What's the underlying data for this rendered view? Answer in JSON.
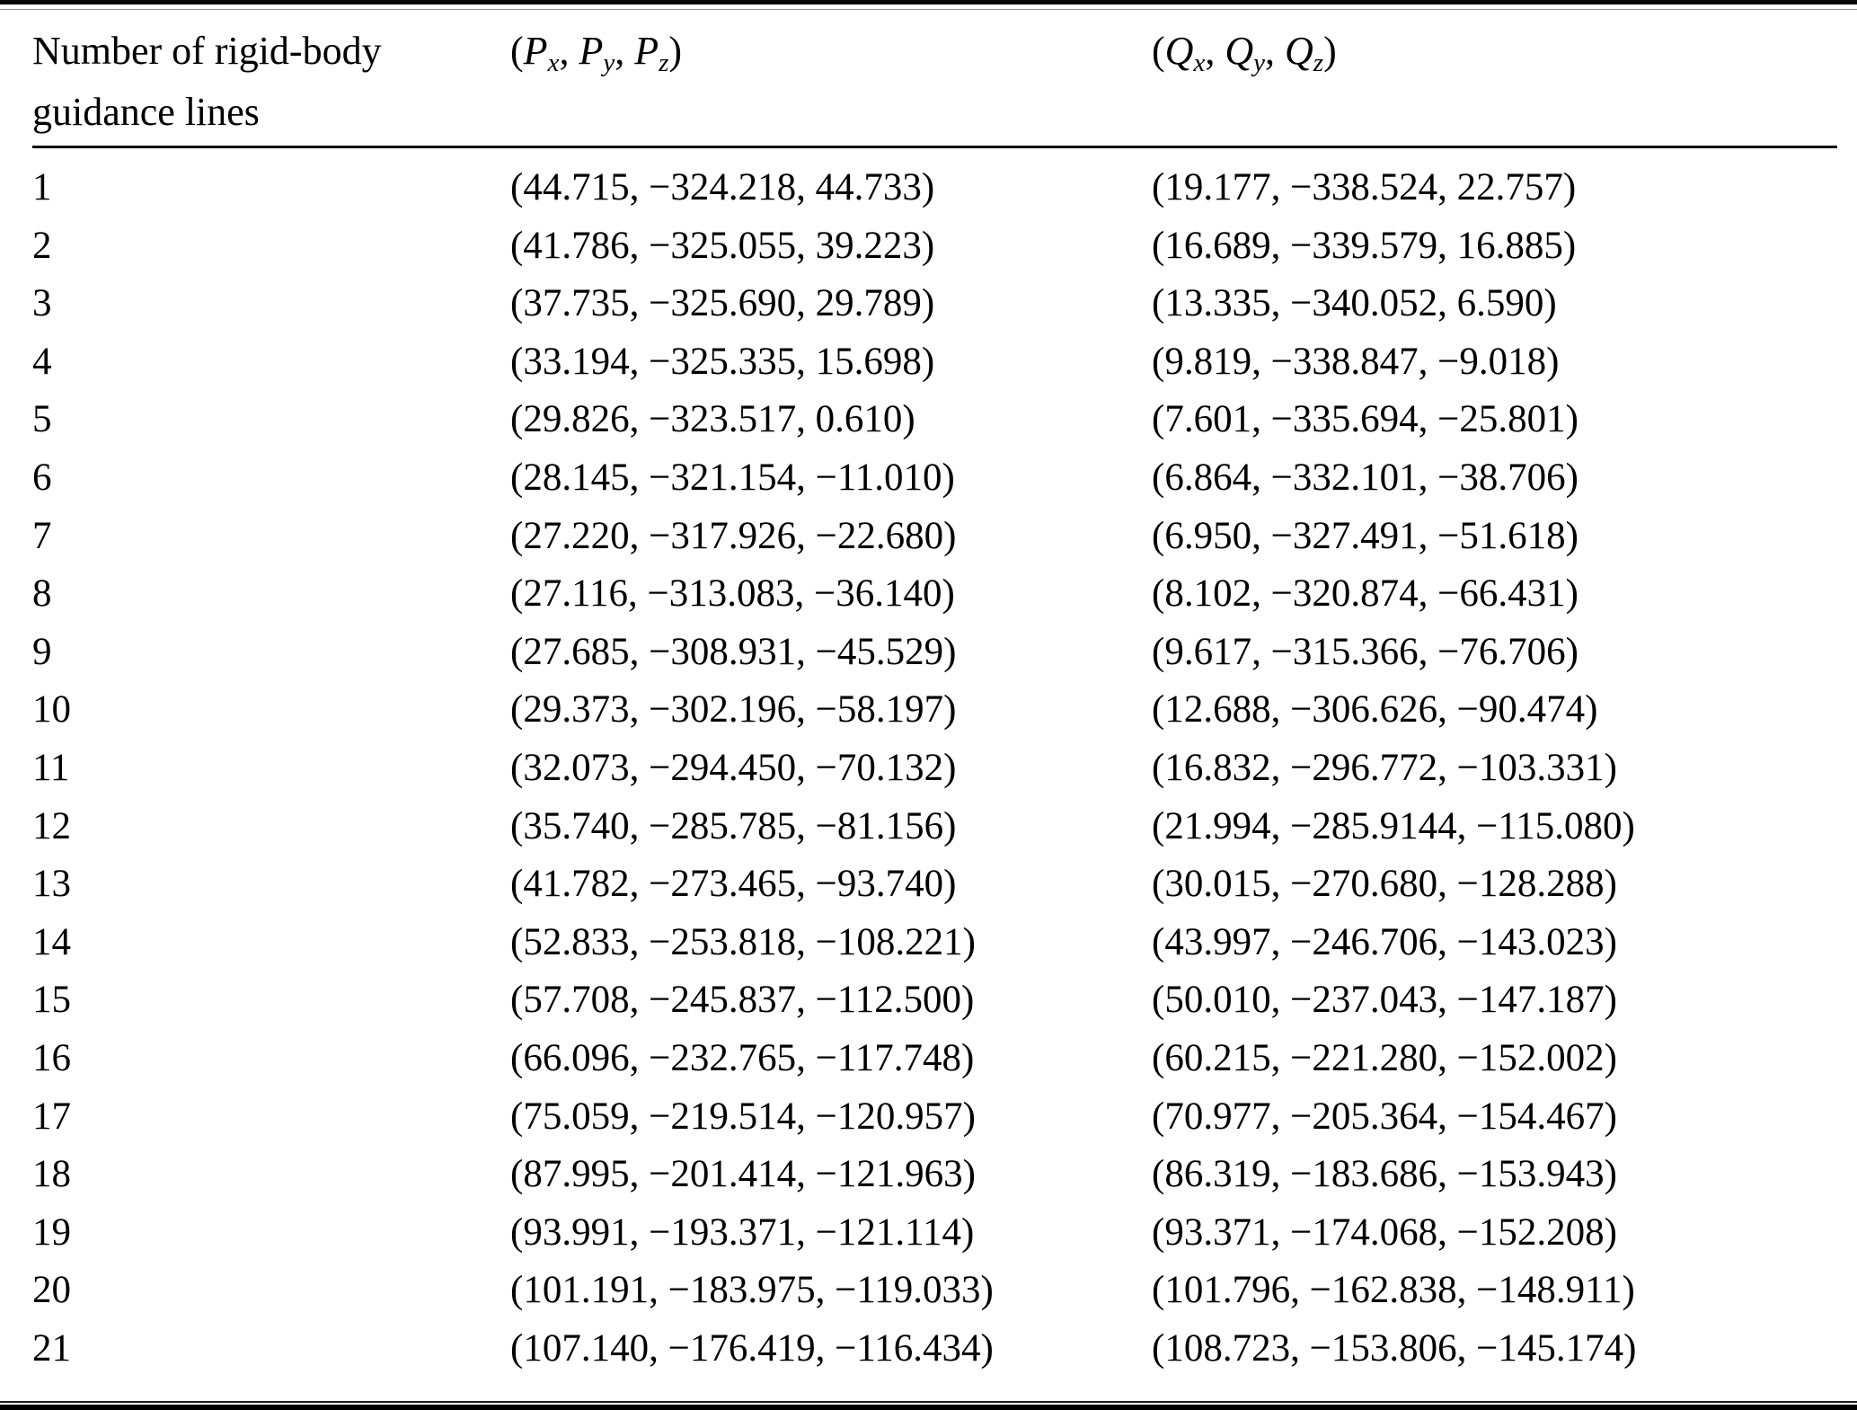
{
  "page": {
    "background": "#ffffff",
    "text_color": "#000000",
    "rule_color": "#000000"
  },
  "table": {
    "header": {
      "col1_line1": "Number of rigid-body",
      "col1_line2": "guidance lines",
      "p": {
        "open": "(",
        "base": "P",
        "subscripts": [
          "x",
          "y",
          "z"
        ],
        "separator": ", ",
        "close": ")"
      },
      "q": {
        "open": "(",
        "base": "Q",
        "subscripts": [
          "x",
          "y",
          "z"
        ],
        "separator": ", ",
        "close": ")"
      }
    },
    "rows": [
      {
        "n": "1",
        "p": "(44.715, −324.218, 44.733)",
        "q": "(19.177, −338.524, 22.757)"
      },
      {
        "n": "2",
        "p": "(41.786, −325.055, 39.223)",
        "q": "(16.689, −339.579, 16.885)"
      },
      {
        "n": "3",
        "p": "(37.735, −325.690, 29.789)",
        "q": "(13.335, −340.052, 6.590)"
      },
      {
        "n": "4",
        "p": "(33.194, −325.335, 15.698)",
        "q": "(9.819, −338.847, −9.018)"
      },
      {
        "n": "5",
        "p": "(29.826, −323.517, 0.610)",
        "q": "(7.601, −335.694, −25.801)"
      },
      {
        "n": "6",
        "p": "(28.145, −321.154, −11.010)",
        "q": "(6.864, −332.101, −38.706)"
      },
      {
        "n": "7",
        "p": "(27.220, −317.926, −22.680)",
        "q": "(6.950, −327.491, −51.618)"
      },
      {
        "n": "8",
        "p": "(27.116, −313.083, −36.140)",
        "q": "(8.102, −320.874, −66.431)"
      },
      {
        "n": "9",
        "p": "(27.685, −308.931, −45.529)",
        "q": "(9.617, −315.366, −76.706)"
      },
      {
        "n": "10",
        "p": "(29.373, −302.196, −58.197)",
        "q": "(12.688, −306.626, −90.474)"
      },
      {
        "n": "11",
        "p": "(32.073, −294.450, −70.132)",
        "q": "(16.832, −296.772, −103.331)"
      },
      {
        "n": "12",
        "p": "(35.740, −285.785, −81.156)",
        "q": "(21.994, −285.9144, −115.080)"
      },
      {
        "n": "13",
        "p": "(41.782, −273.465, −93.740)",
        "q": "(30.015, −270.680, −128.288)"
      },
      {
        "n": "14",
        "p": "(52.833, −253.818, −108.221)",
        "q": "(43.997, −246.706, −143.023)"
      },
      {
        "n": "15",
        "p": "(57.708, −245.837, −112.500)",
        "q": "(50.010, −237.043, −147.187)"
      },
      {
        "n": "16",
        "p": "(66.096, −232.765, −117.748)",
        "q": "(60.215, −221.280, −152.002)"
      },
      {
        "n": "17",
        "p": "(75.059, −219.514, −120.957)",
        "q": "(70.977, −205.364, −154.467)"
      },
      {
        "n": "18",
        "p": "(87.995, −201.414, −121.963)",
        "q": "(86.319, −183.686, −153.943)"
      },
      {
        "n": "19",
        "p": "(93.991, −193.371, −121.114)",
        "q": "(93.371, −174.068, −152.208)"
      },
      {
        "n": "20",
        "p": "(101.191, −183.975, −119.033)",
        "q": "(101.796, −162.838, −148.911)"
      },
      {
        "n": "21",
        "p": "(107.140, −176.419, −116.434)",
        "q": "(108.723, −153.806, −145.174)"
      }
    ]
  }
}
